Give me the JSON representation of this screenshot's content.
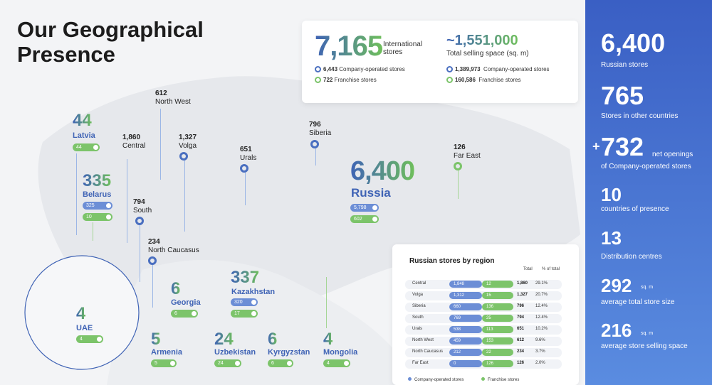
{
  "title": "Our Geographical Presence",
  "summary": {
    "international_stores": "7,165",
    "international_label": "International stores",
    "company_operated": "6,443",
    "company_operated_label": "Company-operated stores",
    "franchise": "722",
    "franchise_label": "Franchise stores",
    "selling_space": "~1,551,000",
    "selling_space_label": "Total selling space (sq. m)",
    "space_company": "1,389,973",
    "space_company_label": "Company-operated stores",
    "space_franchise": "160,586",
    "space_franchise_label": "Franchise stores"
  },
  "right_panel": {
    "s1_num": "6,400",
    "s1_lbl": "Russian stores",
    "s2_num": "765",
    "s2_lbl": "Stores in other countries",
    "s3_plus": "+",
    "s3_num": "732",
    "s3_lbl1": "net openings",
    "s3_lbl2": "of Company-operated stores",
    "s4_num": "10",
    "s4_lbl": "countries of presence",
    "s5_num": "13",
    "s5_lbl": "Distribution centres",
    "s6_num": "292",
    "s6_unit": "sq. m",
    "s6_lbl": "average total store size",
    "s7_num": "216",
    "s7_unit": "sq. m",
    "s7_lbl": "average store selling space"
  },
  "countries": {
    "latvia": {
      "num": "44",
      "name": "Latvia",
      "g": "44"
    },
    "belarus": {
      "num": "335",
      "name": "Belarus",
      "b": "325",
      "g": "10"
    },
    "russia": {
      "num": "6,400",
      "name": "Russia",
      "b": "5,798",
      "g": "602"
    },
    "kazakhstan": {
      "num": "337",
      "name": "Kazakhstan",
      "b": "320",
      "g": "17"
    },
    "georgia": {
      "num": "6",
      "name": "Georgia",
      "g": "6"
    },
    "uae": {
      "num": "4",
      "name": "UAE",
      "g": "4"
    },
    "armenia": {
      "num": "5",
      "name": "Armenia",
      "g": "5"
    },
    "uzbekistan": {
      "num": "24",
      "name": "Uzbekistan",
      "g": "24"
    },
    "kyrgyzstan": {
      "num": "6",
      "name": "Kyrgyzstan",
      "g": "6"
    },
    "mongolia": {
      "num": "4",
      "name": "Mongolia",
      "g": "4"
    }
  },
  "regions": {
    "north_west": {
      "num": "612",
      "name": "North West"
    },
    "central": {
      "num": "1,860",
      "name": "Central"
    },
    "volga": {
      "num": "1,327",
      "name": "Volga"
    },
    "urals": {
      "num": "651",
      "name": "Urals"
    },
    "siberia": {
      "num": "796",
      "name": "Siberia"
    },
    "far_east": {
      "num": "126",
      "name": "Far East"
    },
    "south": {
      "num": "794",
      "name": "South"
    },
    "north_caucasus": {
      "num": "234",
      "name": "North Caucasus"
    }
  },
  "table": {
    "title": "Russian stores by region",
    "col_total": "Total",
    "col_pct": "% of total",
    "rows": [
      {
        "region": "Central",
        "co": "1,848",
        "fr": "12",
        "total": "1,860",
        "pct": "29.1%"
      },
      {
        "region": "Volga",
        "co": "1,312",
        "fr": "15",
        "total": "1,327",
        "pct": "20.7%"
      },
      {
        "region": "Siberia",
        "co": "660",
        "fr": "136",
        "total": "796",
        "pct": "12.4%"
      },
      {
        "region": "South",
        "co": "769",
        "fr": "25",
        "total": "794",
        "pct": "12.4%"
      },
      {
        "region": "Urals",
        "co": "538",
        "fr": "113",
        "total": "651",
        "pct": "10.2%"
      },
      {
        "region": "North West",
        "co": "459",
        "fr": "153",
        "total": "612",
        "pct": "9.6%"
      },
      {
        "region": "North Caucasus",
        "co": "212",
        "fr": "22",
        "total": "234",
        "pct": "3.7%"
      },
      {
        "region": "Far East",
        "co": "0",
        "fr": "126",
        "total": "126",
        "pct": "2.0%"
      }
    ],
    "legend_co": "Company-operated stores",
    "legend_fr": "Franchise stores"
  },
  "colors": {
    "blue": "#3f63b5",
    "green": "#7cc46a",
    "panel": "#4a75d4"
  }
}
